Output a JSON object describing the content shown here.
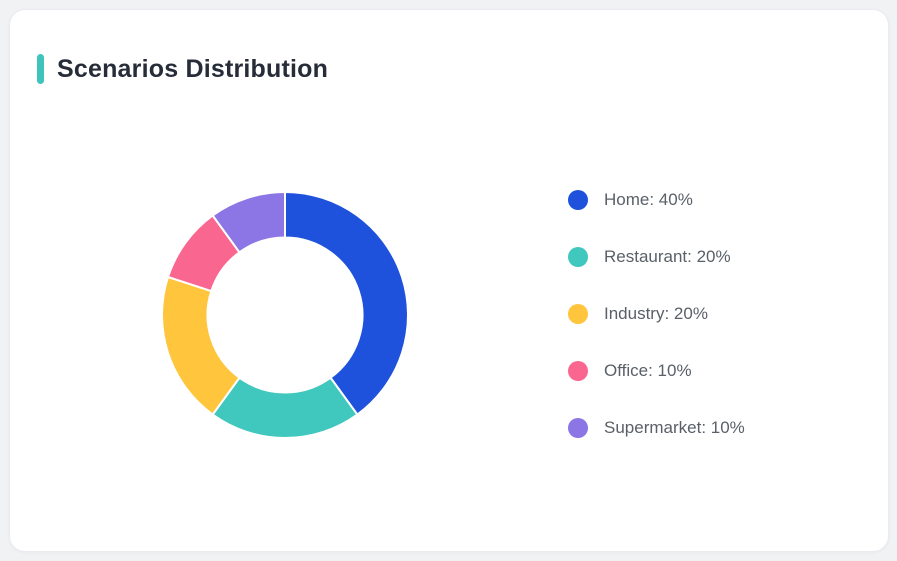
{
  "card": {
    "title": "Scenarios Distribution"
  },
  "colors": {
    "accent_bar": "#3EC3BD",
    "page_background": "#F1F2F4",
    "card_background": "#FFFFFF",
    "title_text": "#272C39",
    "legend_text": "#5A6068",
    "segment_gap": "#FFFFFF"
  },
  "chart_data": {
    "type": "pie",
    "subtype": "donut",
    "title": "Scenarios Distribution",
    "categories": [
      "Home",
      "Restaurant",
      "Industry",
      "Office",
      "Supermarket"
    ],
    "values": [
      40,
      20,
      20,
      10,
      10
    ],
    "unit": "%",
    "colors": [
      "#1E52DC",
      "#41C8BE",
      "#FEC53D",
      "#F96790",
      "#8C75E5"
    ],
    "start_angle_deg_from_top": 0,
    "direction": "clockwise",
    "inner_radius_ratio": 0.63,
    "legend_position": "right",
    "data_labels_shown": false
  },
  "legend": {
    "items": [
      {
        "label": "Home: 40%",
        "color": "#1E52DC"
      },
      {
        "label": "Restaurant: 20%",
        "color": "#41C8BE"
      },
      {
        "label": "Industry: 20%",
        "color": "#FEC53D"
      },
      {
        "label": "Office: 10%",
        "color": "#F96790"
      },
      {
        "label": "Supermarket: 10%",
        "color": "#8C75E5"
      }
    ]
  }
}
